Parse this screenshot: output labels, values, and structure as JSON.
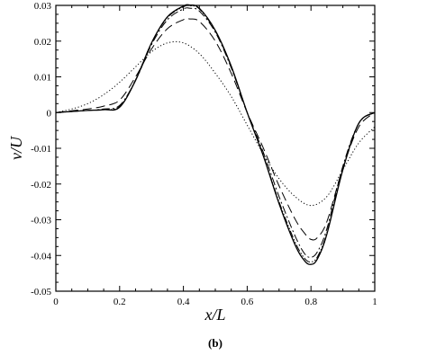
{
  "chart_data": {
    "type": "line",
    "xlabel": "x/L",
    "ylabel": "v/U",
    "caption": "(b)",
    "xlim": [
      0,
      1
    ],
    "ylim": [
      -0.05,
      0.03
    ],
    "xticks": [
      0,
      0.2,
      0.4,
      0.6,
      0.8,
      1
    ],
    "xtick_labels": [
      "0",
      "0.2",
      "0.4",
      "0.6",
      "0.8",
      "1"
    ],
    "yticks": [
      -0.05,
      -0.04,
      -0.03,
      -0.02,
      -0.01,
      0,
      0.01,
      0.02,
      0.03
    ],
    "ytick_labels": [
      "-0.05",
      "-0.04",
      "-0.03",
      "-0.02",
      "-0.01",
      "0",
      "0.01",
      "0.02",
      "0.03"
    ],
    "grid": false,
    "series": [
      {
        "style": "solid",
        "x": [
          0,
          0.05,
          0.1,
          0.15,
          0.2,
          0.25,
          0.3,
          0.35,
          0.4,
          0.42,
          0.45,
          0.5,
          0.55,
          0.6,
          0.65,
          0.7,
          0.75,
          0.78,
          0.8,
          0.82,
          0.85,
          0.9,
          0.95,
          1
        ],
        "y": [
          0,
          0.0003,
          0.0006,
          0.0008,
          0.0015,
          0.009,
          0.0195,
          0.0268,
          0.0298,
          0.0301,
          0.0292,
          0.023,
          0.013,
          0.0,
          -0.012,
          -0.0255,
          -0.037,
          -0.0415,
          -0.0425,
          -0.041,
          -0.034,
          -0.016,
          -0.003,
          0
        ]
      },
      {
        "style": "dashdotdot",
        "x": [
          0,
          0.05,
          0.1,
          0.15,
          0.2,
          0.25,
          0.3,
          0.35,
          0.4,
          0.42,
          0.45,
          0.5,
          0.55,
          0.6,
          0.65,
          0.7,
          0.75,
          0.78,
          0.8,
          0.82,
          0.85,
          0.9,
          0.95,
          1
        ],
        "y": [
          0,
          0.0003,
          0.0006,
          0.0009,
          0.0017,
          0.0092,
          0.0195,
          0.0266,
          0.0296,
          0.0299,
          0.029,
          0.0228,
          0.0128,
          0.0,
          -0.0118,
          -0.025,
          -0.0362,
          -0.0408,
          -0.0418,
          -0.0404,
          -0.0336,
          -0.0158,
          -0.003,
          0
        ]
      },
      {
        "style": "dashdot",
        "x": [
          0,
          0.05,
          0.1,
          0.15,
          0.2,
          0.25,
          0.3,
          0.35,
          0.4,
          0.42,
          0.45,
          0.5,
          0.55,
          0.6,
          0.65,
          0.7,
          0.75,
          0.78,
          0.8,
          0.82,
          0.85,
          0.9,
          0.95,
          1
        ],
        "y": [
          0,
          0.0003,
          0.0006,
          0.001,
          0.002,
          0.009,
          0.019,
          0.026,
          0.029,
          0.0292,
          0.0284,
          0.0225,
          0.0125,
          0.0,
          -0.011,
          -0.0235,
          -0.0345,
          -0.0395,
          -0.0405,
          -0.039,
          -0.0325,
          -0.015,
          -0.003,
          0
        ]
      },
      {
        "style": "longdash",
        "x": [
          0,
          0.05,
          0.1,
          0.15,
          0.2,
          0.25,
          0.3,
          0.35,
          0.4,
          0.42,
          0.45,
          0.5,
          0.55,
          0.6,
          0.65,
          0.7,
          0.75,
          0.78,
          0.8,
          0.82,
          0.85,
          0.9,
          0.95,
          1
        ],
        "y": [
          0,
          0.0005,
          0.001,
          0.0018,
          0.0035,
          0.01,
          0.0178,
          0.0235,
          0.026,
          0.0262,
          0.0255,
          0.02,
          0.011,
          0.0,
          -0.0098,
          -0.0205,
          -0.0298,
          -0.0338,
          -0.0355,
          -0.035,
          -0.0305,
          -0.0155,
          -0.004,
          0
        ]
      },
      {
        "style": "dotted",
        "x": [
          0,
          0.05,
          0.1,
          0.15,
          0.2,
          0.25,
          0.3,
          0.35,
          0.4,
          0.45,
          0.5,
          0.55,
          0.6,
          0.65,
          0.7,
          0.75,
          0.8,
          0.85,
          0.9,
          0.95,
          1
        ],
        "y": [
          0,
          0.001,
          0.0025,
          0.005,
          0.0085,
          0.0128,
          0.017,
          0.0195,
          0.0195,
          0.0165,
          0.011,
          0.0045,
          -0.0035,
          -0.0115,
          -0.0185,
          -0.0235,
          -0.026,
          -0.0235,
          -0.016,
          -0.0085,
          -0.004
        ]
      }
    ]
  }
}
